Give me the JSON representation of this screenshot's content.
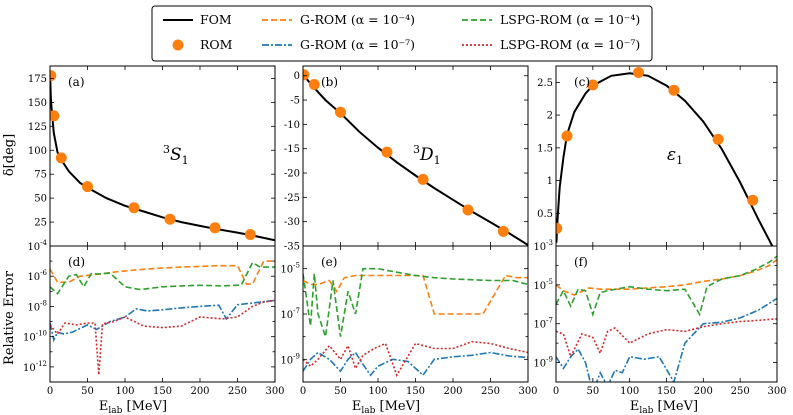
{
  "legend": {
    "entries": [
      {
        "label": "FOM",
        "color": "#000000",
        "style": "solid"
      },
      {
        "label": "ROM",
        "color": "#ff7f0e",
        "style": "marker"
      },
      {
        "label": "G-ROM (α = 10⁻⁴)",
        "color": "#ff7f0e",
        "style": "dashed"
      },
      {
        "label": "G-ROM (α = 10⁻⁷)",
        "color": "#1f77b4",
        "style": "dashdot"
      },
      {
        "label": "LSPG-ROM (α = 10⁻⁴)",
        "color": "#2ca02c",
        "style": "dashed"
      },
      {
        "label": "LSPG-ROM (α = 10⁻⁷)",
        "color": "#d62728",
        "style": "dotted"
      }
    ]
  },
  "labels": {
    "ylabel_top": "δ[deg]",
    "ylabel_bottom": "Relative Error",
    "xlabel": "E",
    "xlabel_sub": "lab",
    "xlabel_unit": " [MeV]"
  },
  "chart_data": [
    {
      "type": "line",
      "tag": "(a)",
      "title_main": "S",
      "title_sup": "3",
      "title_sub": "1",
      "xlim": [
        0,
        300
      ],
      "ylim": [
        0,
        188
      ],
      "xticks": [
        0,
        50,
        100,
        150,
        200,
        250,
        300
      ],
      "yticks": [
        25,
        50,
        75,
        100,
        125,
        150,
        175
      ],
      "fom": {
        "x": [
          0.1,
          1,
          2,
          5,
          10,
          15,
          25,
          40,
          50,
          75,
          100,
          125,
          150,
          175,
          200,
          220,
          250,
          270,
          300
        ],
        "y": [
          180,
          156,
          145,
          118,
          98,
          90,
          78,
          66,
          61,
          50,
          42,
          36,
          30,
          25,
          21,
          18,
          14,
          11,
          6
        ]
      },
      "rom": {
        "x": [
          1,
          5,
          15,
          50,
          112,
          160,
          220,
          267
        ],
        "y": [
          178,
          136,
          92,
          62,
          40,
          28,
          19,
          12
        ]
      }
    },
    {
      "type": "line",
      "tag": "(b)",
      "title_main": "D",
      "title_sup": "3",
      "title_sub": "1",
      "xlim": [
        0,
        300
      ],
      "ylim": [
        -35,
        2
      ],
      "xticks": [
        0,
        50,
        100,
        150,
        200,
        250,
        300
      ],
      "yticks": [
        0,
        -5,
        -10,
        -15,
        -20,
        -25,
        -30,
        -35
      ],
      "fom": {
        "x": [
          0,
          5,
          15,
          30,
          50,
          75,
          100,
          125,
          150,
          175,
          200,
          225,
          250,
          275,
          300
        ],
        "y": [
          0,
          -0.7,
          -2.5,
          -5,
          -7.7,
          -11.5,
          -14.8,
          -17.8,
          -20.5,
          -23.1,
          -25.5,
          -27.9,
          -30.1,
          -32.4,
          -34.8
        ]
      },
      "rom": {
        "x": [
          1,
          15,
          50,
          112,
          160,
          220,
          267
        ],
        "y": [
          0.2,
          -1.8,
          -7.5,
          -15.7,
          -21.3,
          -27.6,
          -32.0
        ]
      }
    },
    {
      "type": "line",
      "tag": "(c)",
      "title_main": "ε",
      "title_sub": "1",
      "xlim": [
        0,
        300
      ],
      "ylim": [
        0.0,
        2.75
      ],
      "xticks": [
        0,
        50,
        100,
        150,
        200,
        250,
        300
      ],
      "yticks": [
        0.5,
        1.0,
        1.5,
        2.0,
        2.5
      ],
      "fom": {
        "x": [
          0.5,
          2,
          5,
          10,
          15,
          25,
          40,
          50,
          75,
          100,
          125,
          150,
          175,
          200,
          225,
          250,
          275,
          290,
          298
        ],
        "y": [
          0.05,
          0.4,
          0.9,
          1.35,
          1.7,
          2.05,
          2.33,
          2.45,
          2.6,
          2.64,
          2.6,
          2.45,
          2.22,
          1.9,
          1.48,
          0.97,
          0.4,
          0.08,
          -0.1
        ]
      },
      "rom": {
        "x": [
          1,
          15,
          50,
          112,
          160,
          220,
          267
        ],
        "y": [
          0.27,
          1.68,
          2.46,
          2.65,
          2.38,
          1.63,
          0.7
        ]
      }
    },
    {
      "type": "line",
      "yscale": "log",
      "tag": "(d)",
      "xlim": [
        0,
        300
      ],
      "ylim": [
        1e-13,
        0.0001
      ],
      "xticks": [
        0,
        50,
        100,
        150,
        200,
        250,
        300
      ],
      "yticks_exp": [
        -12,
        -10,
        -8,
        -6,
        -4
      ],
      "series": [
        {
          "name": "G-ROM (α = 10⁻⁴)",
          "x": [
            0,
            10,
            25,
            40,
            55,
            70,
            90,
            110,
            130,
            150,
            175,
            200,
            225,
            250,
            262,
            270,
            285,
            300
          ],
          "y": [
            3e-06,
            4e-07,
            4e-07,
            1e-06,
            1.2e-06,
            1.5e-06,
            2e-06,
            2.5e-06,
            3e-06,
            3.5e-06,
            4e-06,
            4.5e-06,
            5e-06,
            5e-06,
            3e-07,
            3e-07,
            1e-05,
            1e-05
          ]
        },
        {
          "name": "LSPG-ROM (α = 10⁻⁴)",
          "x": [
            0,
            10,
            25,
            35,
            45,
            55,
            65,
            80,
            100,
            120,
            150,
            175,
            200,
            230,
            255,
            270,
            280,
            300
          ],
          "y": [
            2e-07,
            7e-08,
            1e-06,
            1.3e-06,
            2e-07,
            1.5e-06,
            1.4e-06,
            1.6e-06,
            2e-07,
            1.3e-07,
            2e-07,
            2.3e-07,
            2.5e-07,
            2.3e-07,
            2.6e-07,
            8e-06,
            4e-06,
            4e-06
          ]
        },
        {
          "name": "G-ROM (α = 10⁻⁷)",
          "x": [
            0,
            5,
            10,
            18,
            30,
            50,
            62,
            80,
            100,
            115,
            130,
            150,
            175,
            200,
            225,
            235,
            250,
            275,
            300
          ],
          "y": [
            8e-10,
            6e-11,
            2e-10,
            1.5e-10,
            2e-10,
            6e-10,
            3e-10,
            1e-09,
            2e-09,
            7e-09,
            5e-09,
            6e-09,
            8e-09,
            1e-08,
            1.2e-08,
            1.5e-09,
            1.3e-08,
            1.8e-08,
            2.5e-08
          ]
        },
        {
          "name": "LSPG-ROM (α = 10⁻⁷)",
          "x": [
            0,
            10,
            20,
            35,
            50,
            60,
            65,
            70,
            85,
            100,
            125,
            150,
            175,
            200,
            230,
            250,
            270,
            285,
            300
          ],
          "y": [
            6e-10,
            1.5e-10,
            8e-10,
            6e-10,
            8e-10,
            8e-10,
            3e-13,
            7e-10,
            1e-09,
            2e-09,
            5e-10,
            4e-10,
            5e-10,
            2e-09,
            1.5e-09,
            2e-09,
            1e-08,
            2e-08,
            2.5e-08
          ]
        }
      ]
    },
    {
      "type": "line",
      "yscale": "log",
      "tag": "(e)",
      "xlim": [
        0,
        300
      ],
      "ylim": [
        1e-10,
        0.0001
      ],
      "xticks": [
        0,
        50,
        100,
        150,
        200,
        250,
        300
      ],
      "yticks_exp": [
        -9,
        -7,
        -5
      ],
      "series": [
        {
          "name": "G-ROM (α = 10⁻⁴)",
          "x": [
            0,
            10,
            20,
            35,
            45,
            55,
            70,
            90,
            110,
            130,
            160,
            175,
            190,
            210,
            240,
            270,
            285,
            300
          ],
          "y": [
            3e-06,
            2e-06,
            2e-06,
            3e-06,
            1e-06,
            4e-06,
            5e-06,
            5e-06,
            5e-06,
            5e-06,
            5e-06,
            1e-07,
            1e-07,
            1e-07,
            1e-07,
            5e-06,
            4e-06,
            4e-06
          ]
        },
        {
          "name": "LSPG-ROM (α = 10⁻⁴)",
          "x": [
            0,
            10,
            15,
            20,
            30,
            40,
            50,
            60,
            70,
            80,
            100,
            125,
            150,
            175,
            200,
            250,
            280,
            300
          ],
          "y": [
            6e-06,
            3e-08,
            6e-06,
            1e-07,
            1e-08,
            3e-06,
            1e-08,
            1e-06,
            1e-07,
            1e-05,
            1e-05,
            7e-06,
            5e-06,
            4e-06,
            3.5e-06,
            3e-06,
            3e-06,
            2e-06
          ]
        },
        {
          "name": "G-ROM (α = 10⁻⁷)",
          "x": [
            0,
            10,
            20,
            35,
            50,
            60,
            70,
            80,
            90,
            100,
            120,
            140,
            160,
            175,
            200,
            225,
            250,
            275,
            300
          ],
          "y": [
            3e-10,
            1e-09,
            2e-09,
            1e-09,
            3e-10,
            1e-09,
            2e-09,
            6e-10,
            2e-10,
            5e-10,
            1e-09,
            8e-10,
            2e-10,
            1e-09,
            1.3e-09,
            1.5e-09,
            2e-09,
            1.4e-09,
            1.2e-09
          ]
        },
        {
          "name": "LSPG-ROM (α = 10⁻⁷)",
          "x": [
            0,
            10,
            20,
            35,
            50,
            60,
            70,
            80,
            95,
            110,
            125,
            150,
            175,
            200,
            225,
            250,
            275,
            300
          ],
          "y": [
            1e-09,
            5e-10,
            1e-09,
            4e-09,
            1e-09,
            4e-09,
            4e-10,
            1.5e-09,
            3e-09,
            5e-09,
            2e-10,
            5e-09,
            3e-09,
            3e-09,
            6e-09,
            5e-09,
            3e-09,
            2e-09
          ]
        }
      ]
    },
    {
      "type": "line",
      "yscale": "log",
      "tag": "(f)",
      "xlim": [
        0,
        300
      ],
      "ylim": [
        1e-10,
        0.001
      ],
      "xticks": [
        0,
        50,
        100,
        150,
        200,
        250,
        300
      ],
      "yticks_exp": [
        -9,
        -7,
        -5,
        -3
      ],
      "series": [
        {
          "name": "G-ROM (α = 10⁻⁴)",
          "x": [
            0,
            10,
            25,
            45,
            60,
            80,
            100,
            125,
            150,
            175,
            200,
            225,
            250,
            270,
            290,
            300
          ],
          "y": [
            1e-05,
            5e-06,
            3e-06,
            7e-06,
            6e-06,
            6e-06,
            6e-06,
            7e-06,
            8e-06,
            1e-05,
            1.5e-05,
            2e-05,
            3e-05,
            5e-05,
            0.0001,
            0.0002
          ]
        },
        {
          "name": "LSPG-ROM (α = 10⁻⁴)",
          "x": [
            0,
            10,
            20,
            30,
            40,
            50,
            60,
            70,
            100,
            125,
            150,
            175,
            195,
            205,
            225,
            250,
            270,
            290,
            300
          ],
          "y": [
            1e-06,
            5e-06,
            8e-07,
            6e-06,
            5e-06,
            3e-07,
            4e-06,
            5e-06,
            8e-06,
            6e-06,
            5e-06,
            6e-06,
            3e-07,
            8e-06,
            2e-05,
            3e-05,
            6e-05,
            0.00015,
            0.0003
          ]
        },
        {
          "name": "G-ROM (α = 10⁻⁷)",
          "x": [
            0,
            10,
            20,
            30,
            40,
            50,
            60,
            70,
            80,
            90,
            100,
            120,
            140,
            160,
            175,
            200,
            225,
            250,
            275,
            300
          ],
          "y": [
            2e-09,
            5e-10,
            2e-09,
            5e-09,
            1e-09,
            3e-11,
            3e-10,
            6e-11,
            4e-10,
            3e-10,
            2e-09,
            1.5e-09,
            2e-09,
            1e-10,
            1e-08,
            1e-07,
            1.2e-07,
            2e-07,
            5e-07,
            2e-06
          ]
        },
        {
          "name": "LSPG-ROM (α = 10⁻⁷)",
          "x": [
            0,
            10,
            20,
            35,
            50,
            60,
            70,
            80,
            100,
            125,
            150,
            175,
            200,
            225,
            250,
            275,
            300
          ],
          "y": [
            4e-08,
            3e-08,
            2e-09,
            3e-08,
            2e-08,
            3e-09,
            4e-08,
            6e-08,
            1e-08,
            3e-08,
            5e-08,
            4e-08,
            7e-08,
            1e-07,
            1.3e-07,
            1.5e-07,
            1.8e-07
          ]
        }
      ]
    }
  ]
}
